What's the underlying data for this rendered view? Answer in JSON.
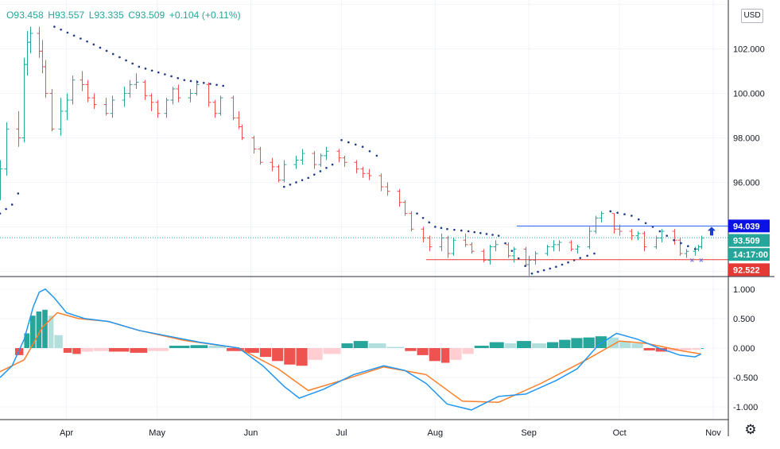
{
  "legend": {
    "open": "O93.458",
    "high": "H93.557",
    "low": "L93.335",
    "close": "C93.509",
    "change": "+0.104 (+0.11%)"
  },
  "currency_label": "USD",
  "colors": {
    "up": "#26a69a",
    "down": "#ef5350",
    "sar": "#1e3a8a",
    "macd_line": "#2196f3",
    "signal_line": "#ff7f2a",
    "hist_up_strong": "#26a69a",
    "hist_up_weak": "#b2dfdb",
    "hist_down_strong": "#ef5350",
    "hist_down_weak": "#ffcdd2",
    "resistance_line": "#2962ff",
    "support_line": "#e53935",
    "resistance_tag": "#0b12e6",
    "price_tag": "#26a69a",
    "time_tag": "#26a69a",
    "support_tag": "#e53935"
  },
  "chart_data": [
    {
      "type": "ohlc",
      "y_ticks": [
        "102.000",
        "100.000",
        "98.000",
        "96.000"
      ],
      "ylim": [
        91.8,
        104.2
      ],
      "x_ticks": [
        "Apr",
        "May",
        "Jun",
        "Jul",
        "Aug",
        "Sep",
        "Oct",
        "Nov"
      ],
      "x_range": [
        "2020-03-10",
        "2020-11-06"
      ],
      "bars": [
        [
          "2020-03-10",
          95.8,
          97.0,
          95.2,
          96.6
        ],
        [
          "2020-03-12",
          96.6,
          98.7,
          96.3,
          98.4
        ],
        [
          "2020-03-16",
          98.4,
          99.2,
          97.6,
          98.0
        ],
        [
          "2020-03-18",
          98.0,
          101.6,
          97.8,
          101.3
        ],
        [
          "2020-03-19",
          101.3,
          102.8,
          100.8,
          102.3
        ],
        [
          "2020-03-20",
          102.3,
          103.0,
          101.8,
          102.7
        ],
        [
          "2020-03-23",
          102.7,
          103.0,
          101.6,
          101.9
        ],
        [
          "2020-03-24",
          101.9,
          102.4,
          100.9,
          101.2
        ],
        [
          "2020-03-25",
          101.2,
          101.5,
          99.8,
          100.0
        ],
        [
          "2020-03-27",
          100.0,
          100.2,
          98.3,
          98.4
        ],
        [
          "2020-03-30",
          98.4,
          99.8,
          98.1,
          99.2
        ],
        [
          "2020-04-01",
          99.2,
          100.0,
          98.8,
          99.7
        ],
        [
          "2020-04-03",
          99.7,
          100.8,
          99.5,
          100.6
        ],
        [
          "2020-04-06",
          100.6,
          101.0,
          100.1,
          100.4
        ],
        [
          "2020-04-08",
          100.4,
          100.6,
          99.6,
          99.8
        ],
        [
          "2020-04-10",
          99.8,
          100.0,
          99.3,
          99.5
        ],
        [
          "2020-04-14",
          99.5,
          99.8,
          99.0,
          99.1
        ],
        [
          "2020-04-16",
          99.1,
          99.9,
          98.9,
          99.7
        ],
        [
          "2020-04-20",
          99.7,
          100.3,
          99.4,
          100.0
        ],
        [
          "2020-04-22",
          100.0,
          100.6,
          99.8,
          100.4
        ],
        [
          "2020-04-24",
          100.4,
          100.9,
          100.2,
          100.5
        ],
        [
          "2020-04-27",
          100.5,
          100.6,
          99.7,
          99.9
        ],
        [
          "2020-04-29",
          99.9,
          100.0,
          99.2,
          99.6
        ],
        [
          "2020-05-01",
          99.6,
          99.7,
          98.9,
          99.1
        ],
        [
          "2020-05-04",
          99.1,
          99.8,
          98.9,
          99.7
        ],
        [
          "2020-05-06",
          99.7,
          100.3,
          99.5,
          100.2
        ],
        [
          "2020-05-08",
          100.2,
          100.4,
          99.6,
          99.8
        ],
        [
          "2020-05-12",
          99.8,
          100.2,
          99.6,
          100.0
        ],
        [
          "2020-05-14",
          100.0,
          100.6,
          99.9,
          100.4
        ],
        [
          "2020-05-18",
          100.4,
          100.5,
          99.4,
          99.6
        ],
        [
          "2020-05-20",
          99.6,
          99.7,
          98.9,
          99.1
        ],
        [
          "2020-05-22",
          99.1,
          99.9,
          99.0,
          99.8
        ],
        [
          "2020-05-26",
          99.8,
          99.9,
          98.8,
          98.9
        ],
        [
          "2020-05-28",
          98.9,
          99.2,
          98.4,
          98.5
        ],
        [
          "2020-05-29",
          98.5,
          98.6,
          97.9,
          98.0
        ],
        [
          "2020-06-02",
          98.0,
          98.1,
          97.3,
          97.5
        ],
        [
          "2020-06-04",
          97.5,
          97.6,
          96.8,
          96.9
        ],
        [
          "2020-06-08",
          96.9,
          97.1,
          96.5,
          96.7
        ],
        [
          "2020-06-10",
          96.7,
          96.8,
          96.0,
          96.1
        ],
        [
          "2020-06-12",
          96.1,
          97.0,
          96.0,
          96.8
        ],
        [
          "2020-06-16",
          96.8,
          97.2,
          96.6,
          97.0
        ],
        [
          "2020-06-18",
          97.0,
          97.5,
          96.8,
          97.3
        ],
        [
          "2020-06-22",
          97.3,
          97.4,
          96.6,
          96.8
        ],
        [
          "2020-06-24",
          96.8,
          97.3,
          96.7,
          97.2
        ],
        [
          "2020-06-26",
          97.2,
          97.6,
          97.0,
          97.4
        ],
        [
          "2020-06-30",
          97.4,
          97.5,
          96.9,
          97.1
        ],
        [
          "2020-07-02",
          97.1,
          97.2,
          96.7,
          96.9
        ],
        [
          "2020-07-06",
          96.9,
          97.0,
          96.4,
          96.6
        ],
        [
          "2020-07-08",
          96.6,
          96.7,
          96.2,
          96.4
        ],
        [
          "2020-07-10",
          96.4,
          96.6,
          96.1,
          96.3
        ],
        [
          "2020-07-14",
          96.3,
          96.4,
          95.6,
          95.8
        ],
        [
          "2020-07-16",
          95.8,
          96.0,
          95.4,
          95.6
        ],
        [
          "2020-07-20",
          95.6,
          95.7,
          94.9,
          95.1
        ],
        [
          "2020-07-22",
          95.1,
          95.2,
          94.5,
          94.6
        ],
        [
          "2020-07-24",
          94.6,
          94.7,
          93.8,
          93.9
        ],
        [
          "2020-07-28",
          93.9,
          94.0,
          93.3,
          93.5
        ],
        [
          "2020-07-30",
          93.5,
          93.6,
          92.9,
          93.1
        ],
        [
          "2020-08-03",
          93.1,
          93.7,
          92.9,
          93.5
        ],
        [
          "2020-08-05",
          93.5,
          93.6,
          92.6,
          92.8
        ],
        [
          "2020-08-07",
          92.8,
          93.5,
          92.7,
          93.4
        ],
        [
          "2020-08-11",
          93.4,
          93.7,
          93.1,
          93.2
        ],
        [
          "2020-08-13",
          93.2,
          93.3,
          92.8,
          92.9
        ],
        [
          "2020-08-17",
          92.9,
          93.0,
          92.4,
          92.5
        ],
        [
          "2020-08-19",
          92.5,
          93.2,
          92.3,
          93.1
        ],
        [
          "2020-08-21",
          93.1,
          93.4,
          92.9,
          93.2
        ],
        [
          "2020-08-25",
          93.2,
          93.3,
          92.6,
          92.7
        ],
        [
          "2020-08-27",
          92.7,
          93.1,
          92.4,
          93.0
        ],
        [
          "2020-08-31",
          93.0,
          93.1,
          92.2,
          92.3
        ],
        [
          "2020-09-01",
          92.3,
          92.7,
          91.8,
          92.5
        ],
        [
          "2020-09-03",
          92.5,
          92.9,
          92.3,
          92.8
        ],
        [
          "2020-09-07",
          92.8,
          93.2,
          92.7,
          93.1
        ],
        [
          "2020-09-09",
          93.1,
          93.4,
          92.9,
          93.2
        ],
        [
          "2020-09-11",
          93.2,
          93.4,
          92.9,
          93.3
        ],
        [
          "2020-09-15",
          93.3,
          93.4,
          92.9,
          93.0
        ],
        [
          "2020-09-17",
          93.0,
          93.2,
          92.8,
          93.1
        ],
        [
          "2020-09-21",
          93.1,
          94.0,
          93.0,
          93.8
        ],
        [
          "2020-09-23",
          93.8,
          94.5,
          93.7,
          94.4
        ],
        [
          "2020-09-25",
          94.4,
          94.7,
          94.2,
          94.6
        ],
        [
          "2020-09-29",
          94.6,
          94.6,
          93.7,
          93.9
        ],
        [
          "2020-10-01",
          93.9,
          94.1,
          93.6,
          93.8
        ],
        [
          "2020-10-05",
          93.8,
          93.9,
          93.4,
          93.6
        ],
        [
          "2020-10-07",
          93.6,
          93.8,
          93.4,
          93.7
        ],
        [
          "2020-10-09",
          93.7,
          93.8,
          92.9,
          93.1
        ],
        [
          "2020-10-13",
          93.1,
          93.6,
          93.0,
          93.5
        ],
        [
          "2020-10-15",
          93.5,
          93.9,
          93.3,
          93.8
        ],
        [
          "2020-10-19",
          93.8,
          93.9,
          93.2,
          93.4
        ],
        [
          "2020-10-21",
          93.4,
          93.5,
          92.7,
          92.8
        ],
        [
          "2020-10-23",
          92.8,
          93.0,
          92.6,
          92.9
        ],
        [
          "2020-10-26",
          92.9,
          93.1,
          92.7,
          93.0
        ],
        [
          "2020-10-27",
          93.0,
          93.2,
          92.9,
          93.1
        ],
        [
          "2020-10-28",
          93.1,
          93.6,
          93.0,
          93.5
        ]
      ],
      "parabolic_sar": {
        "dates": [
          "2020-03-10",
          "2020-03-14",
          "2020-03-18",
          "2020-03-22",
          "2020-03-28",
          "2020-04-10",
          "2020-04-25",
          "2020-05-10",
          "2020-05-25",
          "2020-06-01",
          "2020-06-06",
          "2020-06-12",
          "2020-06-20",
          "2020-06-28",
          "2020-07-01",
          "2020-07-08",
          "2020-07-15",
          "2020-07-22",
          "2020-07-26",
          "2020-08-01",
          "2020-08-05",
          "2020-08-12",
          "2020-08-22",
          "2020-09-02",
          "2020-09-10",
          "2020-09-18",
          "2020-09-25",
          "2020-09-28",
          "2020-10-05",
          "2020-10-12",
          "2020-10-19",
          "2020-10-26",
          "2020-10-28"
        ],
        "values": [
          94.6,
          95.0,
          96.0,
          97.8,
          103.0,
          102.2,
          101.2,
          100.6,
          100.3,
          98.8,
          97.2,
          95.8,
          96.2,
          96.8,
          97.9,
          97.6,
          97.0,
          95.8,
          94.6,
          94.0,
          93.9,
          93.8,
          93.6,
          91.9,
          92.2,
          92.6,
          92.9,
          94.7,
          94.5,
          94.0,
          93.4,
          93.0,
          92.6
        ]
      },
      "annotations": {
        "resistance": 94.039,
        "support": 92.522,
        "resistance_from": "2020-08-28",
        "support_from": "2020-07-29",
        "arrow": "up",
        "last_price": 93.509
      },
      "price_tags": {
        "resistance": "94.039",
        "last": "93.509",
        "time": "14:17:00",
        "support": "92.522"
      }
    },
    {
      "type": "macd",
      "y_ticks": [
        "1.000",
        "0.500",
        "0.000",
        "-0.500",
        "-1.000"
      ],
      "ylim": [
        -1.2,
        1.2
      ],
      "macd_line": [
        [
          "2020-03-10",
          -0.5
        ],
        [
          "2020-03-14",
          -0.3
        ],
        [
          "2020-03-18",
          0.15
        ],
        [
          "2020-03-21",
          0.7
        ],
        [
          "2020-03-23",
          0.95
        ],
        [
          "2020-03-25",
          1.0
        ],
        [
          "2020-03-28",
          0.85
        ],
        [
          "2020-04-01",
          0.6
        ],
        [
          "2020-04-07",
          0.5
        ],
        [
          "2020-04-15",
          0.45
        ],
        [
          "2020-04-25",
          0.3
        ],
        [
          "2020-05-05",
          0.2
        ],
        [
          "2020-05-15",
          0.1
        ],
        [
          "2020-05-28",
          0.0
        ],
        [
          "2020-06-05",
          -0.3
        ],
        [
          "2020-06-12",
          -0.65
        ],
        [
          "2020-06-17",
          -0.85
        ],
        [
          "2020-06-25",
          -0.7
        ],
        [
          "2020-07-05",
          -0.45
        ],
        [
          "2020-07-15",
          -0.3
        ],
        [
          "2020-07-22",
          -0.38
        ],
        [
          "2020-07-29",
          -0.6
        ],
        [
          "2020-08-05",
          -0.95
        ],
        [
          "2020-08-13",
          -1.05
        ],
        [
          "2020-08-22",
          -0.82
        ],
        [
          "2020-08-31",
          -0.78
        ],
        [
          "2020-09-10",
          -0.55
        ],
        [
          "2020-09-17",
          -0.35
        ],
        [
          "2020-09-24",
          0.05
        ],
        [
          "2020-09-30",
          0.25
        ],
        [
          "2020-10-07",
          0.15
        ],
        [
          "2020-10-14",
          0.0
        ],
        [
          "2020-10-21",
          -0.12
        ],
        [
          "2020-10-26",
          -0.15
        ],
        [
          "2020-10-28",
          -0.1
        ]
      ],
      "signal_line": [
        [
          "2020-03-10",
          -0.4
        ],
        [
          "2020-03-18",
          -0.2
        ],
        [
          "2020-03-24",
          0.35
        ],
        [
          "2020-03-29",
          0.6
        ],
        [
          "2020-04-05",
          0.5
        ],
        [
          "2020-04-15",
          0.45
        ],
        [
          "2020-04-25",
          0.3
        ],
        [
          "2020-05-10",
          0.13
        ],
        [
          "2020-05-28",
          0.0
        ],
        [
          "2020-06-10",
          -0.35
        ],
        [
          "2020-06-20",
          -0.72
        ],
        [
          "2020-07-01",
          -0.55
        ],
        [
          "2020-07-15",
          -0.32
        ],
        [
          "2020-07-29",
          -0.45
        ],
        [
          "2020-08-10",
          -0.9
        ],
        [
          "2020-08-22",
          -0.92
        ],
        [
          "2020-09-05",
          -0.6
        ],
        [
          "2020-09-20",
          -0.2
        ],
        [
          "2020-10-01",
          0.12
        ],
        [
          "2020-10-10",
          0.08
        ],
        [
          "2020-10-22",
          -0.05
        ],
        [
          "2020-10-28",
          -0.1
        ]
      ],
      "histogram": [
        [
          "2020-03-15",
          -0.12
        ],
        [
          "2020-03-18",
          0.25
        ],
        [
          "2020-03-20",
          0.55
        ],
        [
          "2020-03-22",
          0.62
        ],
        [
          "2020-03-24",
          0.65
        ],
        [
          "2020-03-26",
          0.55
        ],
        [
          "2020-03-28",
          0.22
        ],
        [
          "2020-03-31",
          -0.08
        ],
        [
          "2020-04-03",
          -0.1
        ],
        [
          "2020-04-06",
          -0.06
        ],
        [
          "2020-04-10",
          -0.05
        ],
        [
          "2020-04-15",
          -0.06
        ],
        [
          "2020-04-22",
          -0.08
        ],
        [
          "2020-04-28",
          -0.05
        ],
        [
          "2020-05-05",
          0.04
        ],
        [
          "2020-05-12",
          0.05
        ],
        [
          "2020-05-18",
          0.04
        ],
        [
          "2020-05-24",
          -0.05
        ],
        [
          "2020-05-30",
          -0.08
        ],
        [
          "2020-06-04",
          -0.15
        ],
        [
          "2020-06-08",
          -0.22
        ],
        [
          "2020-06-12",
          -0.28
        ],
        [
          "2020-06-16",
          -0.3
        ],
        [
          "2020-06-20",
          -0.2
        ],
        [
          "2020-06-25",
          -0.1
        ],
        [
          "2020-07-01",
          0.08
        ],
        [
          "2020-07-05",
          0.12
        ],
        [
          "2020-07-10",
          0.08
        ],
        [
          "2020-07-16",
          0.02
        ],
        [
          "2020-07-22",
          -0.05
        ],
        [
          "2020-07-26",
          -0.12
        ],
        [
          "2020-07-30",
          -0.22
        ],
        [
          "2020-08-03",
          -0.25
        ],
        [
          "2020-08-06",
          -0.2
        ],
        [
          "2020-08-10",
          -0.1
        ],
        [
          "2020-08-14",
          0.04
        ],
        [
          "2020-08-19",
          0.1
        ],
        [
          "2020-08-24",
          0.08
        ],
        [
          "2020-08-28",
          0.12
        ],
        [
          "2020-09-02",
          0.08
        ],
        [
          "2020-09-07",
          0.1
        ],
        [
          "2020-09-11",
          0.14
        ],
        [
          "2020-09-15",
          0.17
        ],
        [
          "2020-09-19",
          0.18
        ],
        [
          "2020-09-23",
          0.2
        ],
        [
          "2020-09-27",
          0.18
        ],
        [
          "2020-10-01",
          0.12
        ],
        [
          "2020-10-05",
          0.08
        ],
        [
          "2020-10-09",
          -0.04
        ],
        [
          "2020-10-13",
          -0.06
        ],
        [
          "2020-10-17",
          -0.05
        ],
        [
          "2020-10-21",
          -0.04
        ],
        [
          "2020-10-25",
          -0.03
        ],
        [
          "2020-10-28",
          0.0
        ]
      ]
    }
  ]
}
